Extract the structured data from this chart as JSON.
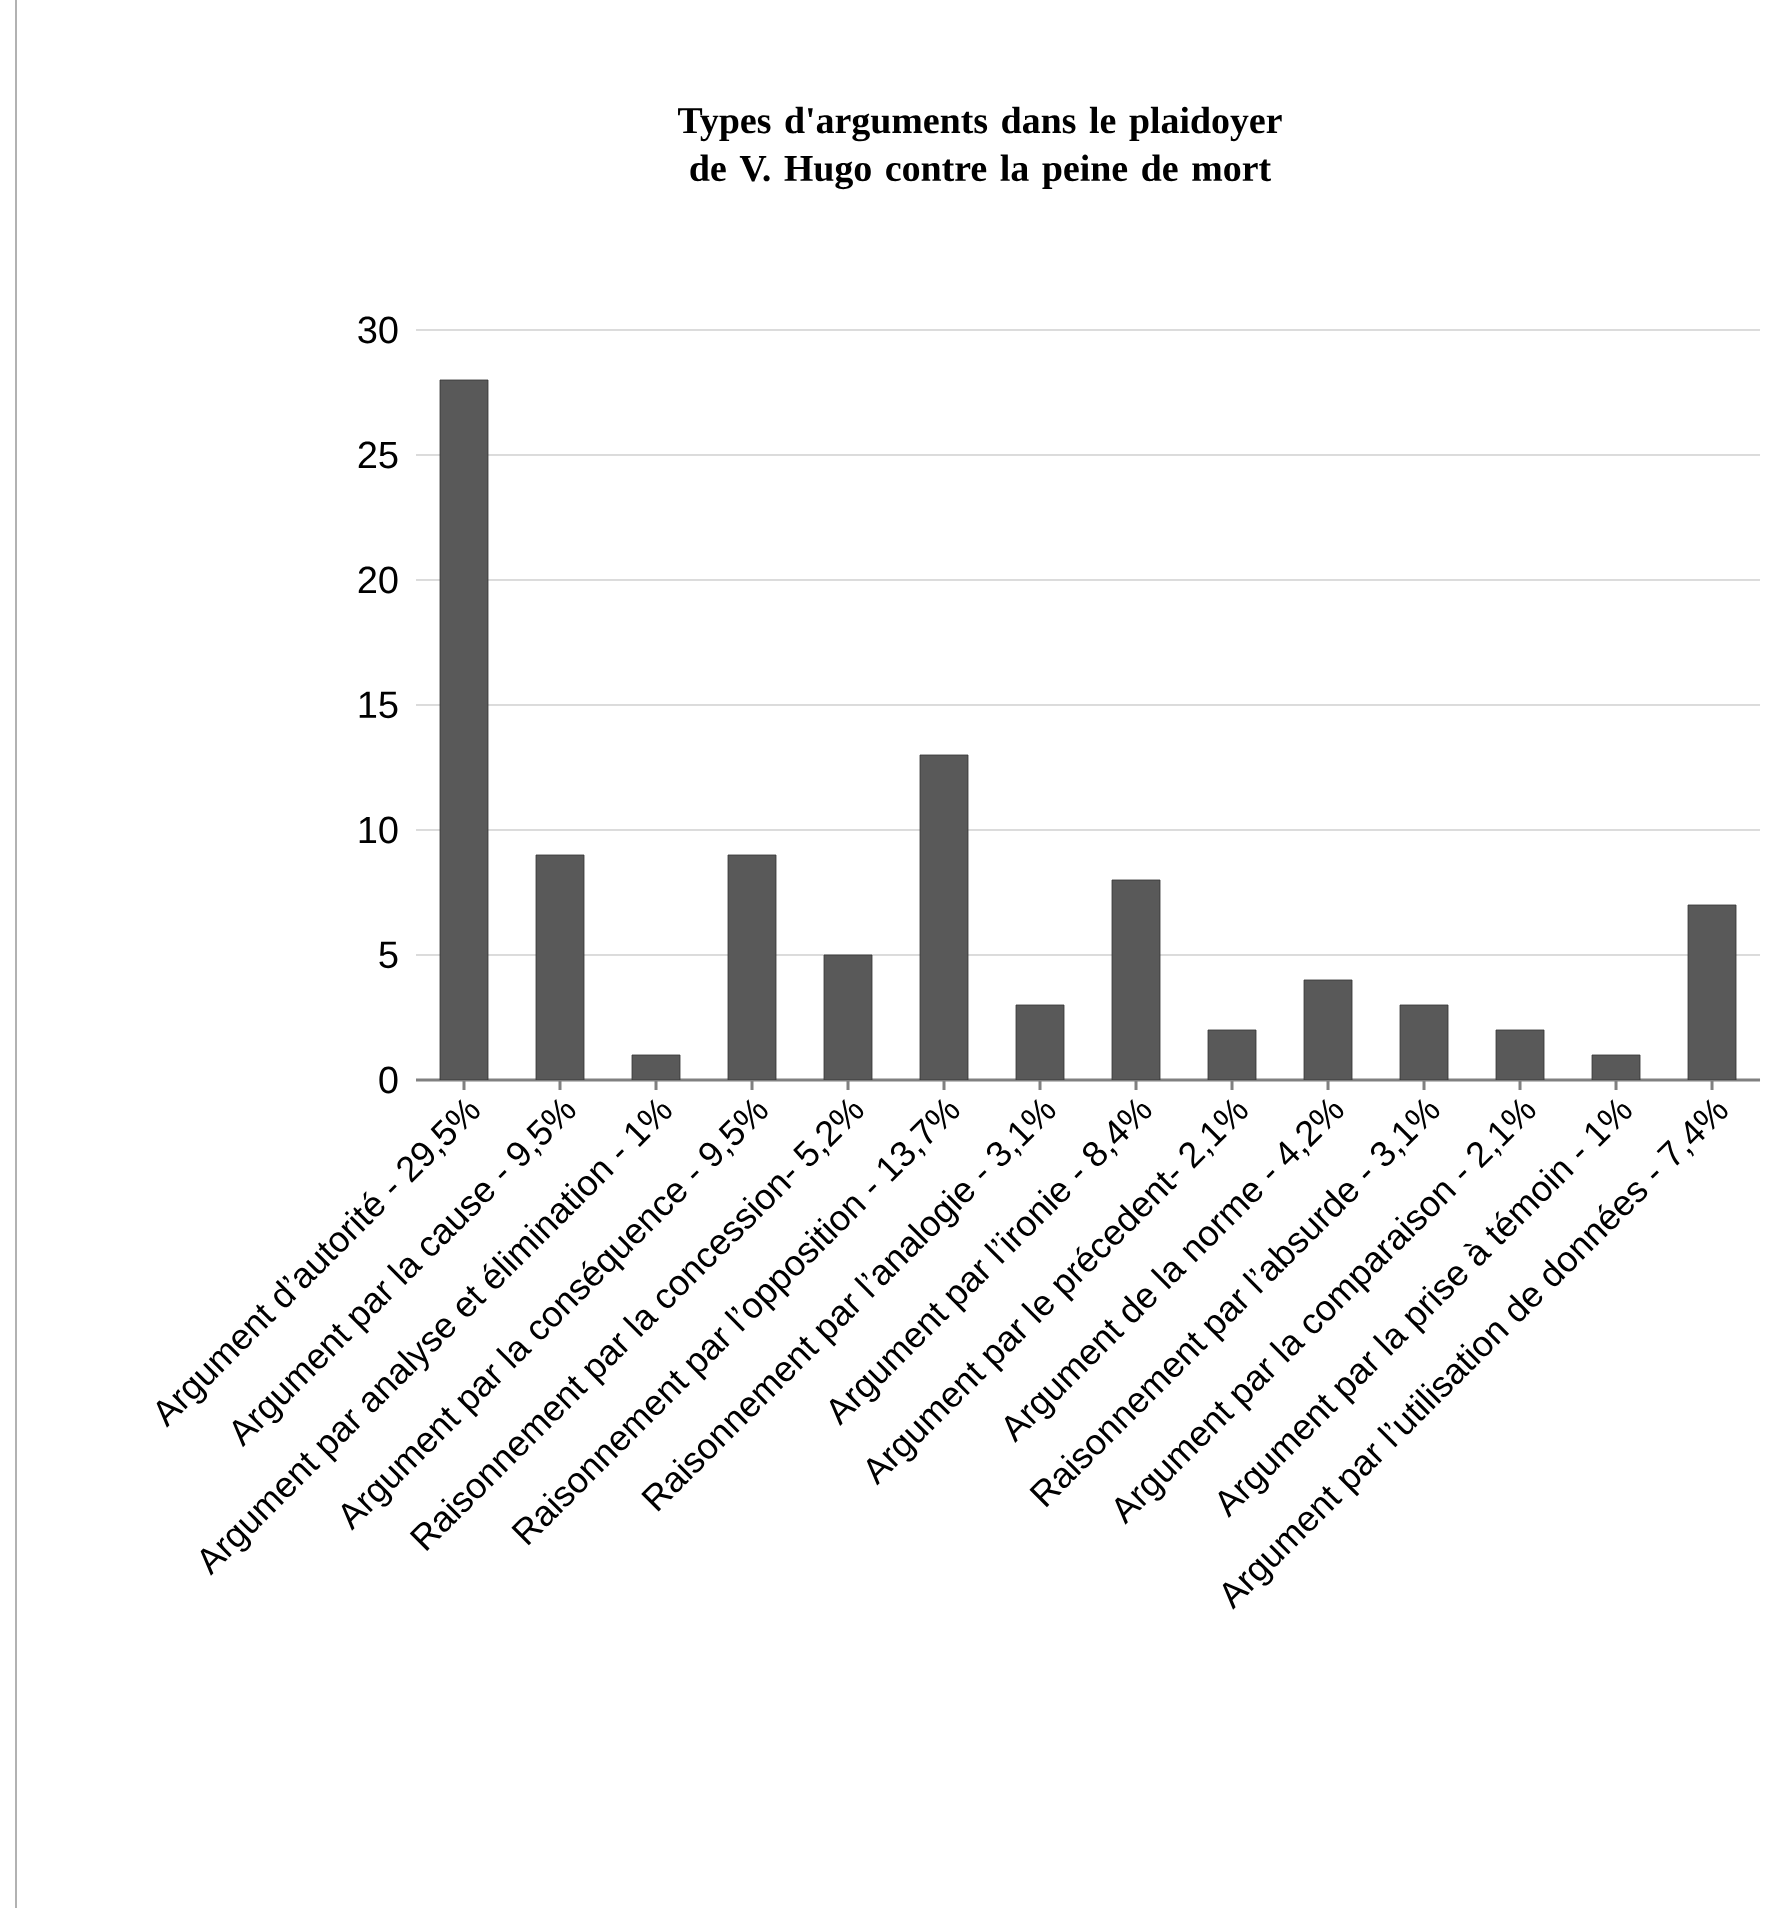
{
  "chart_data": {
    "type": "bar",
    "title": "Types d'arguments dans le plaidoyer de V. Hugo contre la peine de mort",
    "categories": [
      "Argument d’autorité - 29,5%",
      "Argument par la cause - 9,5%",
      "Argument par analyse et élimination - 1%",
      "Argument par la conséquence - 9,5%",
      "Raisonnement par la concession- 5,2%",
      "Raisonnement par l’opposition - 13,7%",
      "Raisonnement par l’analogie - 3,1%",
      "Argument par l’ironie - 8,4%",
      "Argument par le précedent- 2,1%",
      "Argument de la norme - 4,2%",
      "Raisonnement par l’absurde - 3,1%",
      "Argument par la comparaison - 2,1%",
      "Argument par la prise à témoin - 1%",
      "Argument par l’utilisation de données - 7,4%"
    ],
    "values": [
      28,
      9,
      1,
      9,
      5,
      13,
      3,
      8,
      2,
      4,
      3,
      2,
      1,
      7
    ],
    "color": "#595959",
    "ylim": [
      0,
      30
    ],
    "yticks": [
      0,
      5,
      10,
      15,
      20,
      25,
      30
    ],
    "grid": "y"
  }
}
